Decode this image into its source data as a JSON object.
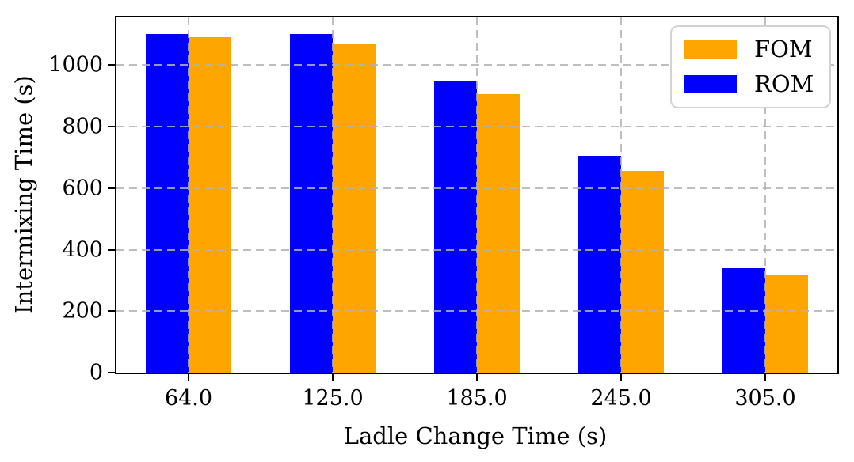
{
  "figure": {
    "background": "#ffffff",
    "frame_color": "#000000",
    "grid_color": "#b2b2b2",
    "grid_style": "dashed, drawn over bars, both axes"
  },
  "chart_data": {
    "type": "bar",
    "title": "",
    "xlabel": "Ladle Change Time (s)",
    "ylabel": "Intermixing Time (s)",
    "categories": [
      "64.0",
      "125.0",
      "185.0",
      "245.0",
      "305.0"
    ],
    "series": [
      {
        "name": "ROM",
        "color": "#0000ff",
        "values": [
          1100,
          1100,
          950,
          705,
          340
        ]
      },
      {
        "name": "FOM",
        "color": "#ffa500",
        "values": [
          1090,
          1070,
          905,
          655,
          320
        ]
      }
    ],
    "bar_order": [
      "ROM",
      "FOM"
    ],
    "ylim": [
      0,
      1155
    ],
    "yticks": [
      0,
      200,
      400,
      600,
      800,
      1000
    ],
    "grid": true,
    "legend": {
      "position": "upper-right",
      "entries": [
        "FOM",
        "ROM"
      ]
    }
  }
}
